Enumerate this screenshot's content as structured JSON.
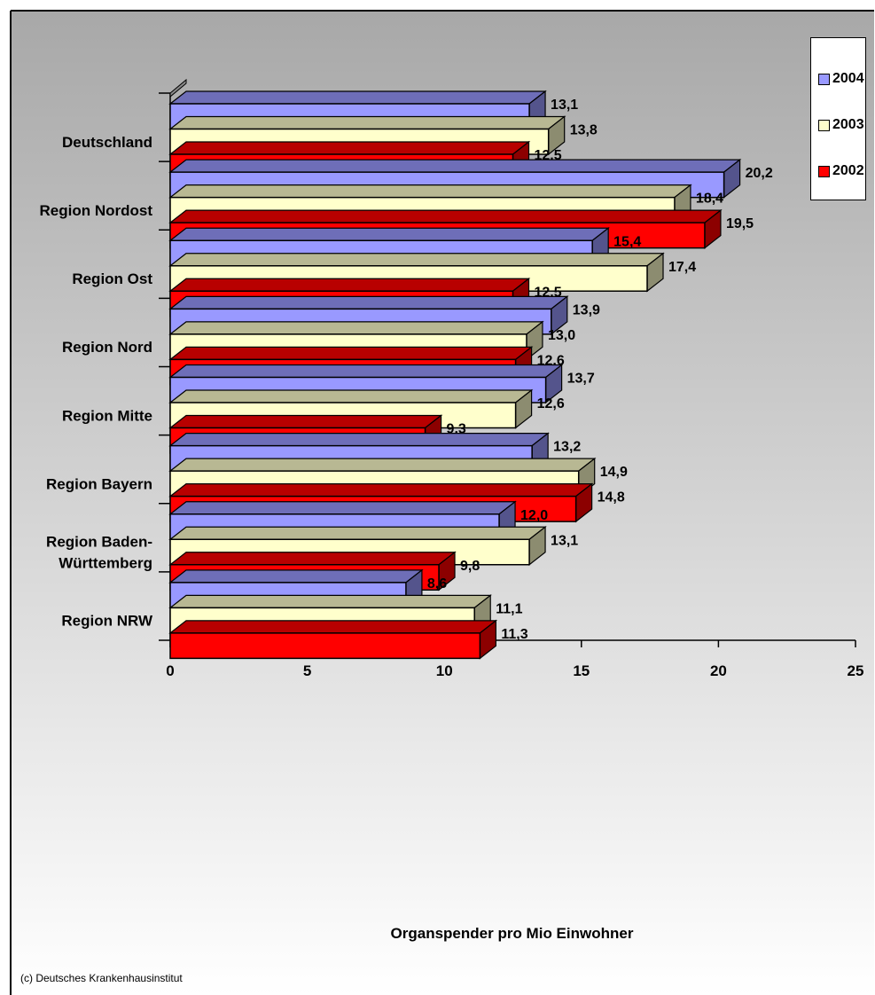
{
  "chart_data": {
    "type": "bar",
    "orientation": "horizontal",
    "categories": [
      "Deutschland",
      "Region Nordost",
      "Region Ost",
      "Region Nord",
      "Region Mitte",
      "Region Bayern",
      "Region Baden-\nWürttemberg",
      "Region NRW"
    ],
    "series": [
      {
        "name": "2004",
        "values": [
          13.1,
          20.2,
          15.4,
          13.9,
          13.7,
          13.2,
          12.0,
          8.6
        ],
        "color": "#9999ff",
        "labels": [
          "13,1",
          "20,2",
          "15,4",
          "13,9",
          "13,7",
          "13,2",
          "12,0",
          "8,6"
        ]
      },
      {
        "name": "2003",
        "values": [
          13.8,
          18.4,
          17.4,
          13.0,
          12.6,
          14.9,
          13.1,
          11.1
        ],
        "color": "#ffffcc",
        "labels": [
          "13,8",
          "18,4",
          "17,4",
          "13,0",
          "12,6",
          "14,9",
          "13,1",
          "11,1"
        ]
      },
      {
        "name": "2002",
        "values": [
          12.5,
          19.5,
          12.5,
          12.6,
          9.3,
          14.8,
          9.8,
          11.3
        ],
        "color": "#ff0000",
        "labels": [
          "12,5",
          "19,5",
          "12,5",
          "12,6",
          "9,3",
          "14,8",
          "9,8",
          "11,3"
        ]
      }
    ],
    "xlabel": "Organspender pro Mio Einwohner",
    "xlim": [
      0,
      25
    ],
    "xticks": [
      "0",
      "5",
      "10",
      "15",
      "20",
      "25"
    ],
    "legend_position": "top-right",
    "grid": false,
    "style": "3d"
  },
  "legend": {
    "items": [
      {
        "label": "2004",
        "color": "#9999ff"
      },
      {
        "label": "2003",
        "color": "#ffffcc"
      },
      {
        "label": "2002",
        "color": "#ff0000"
      }
    ]
  },
  "copyright": "(c) Deutsches Krankenhausinstitut"
}
